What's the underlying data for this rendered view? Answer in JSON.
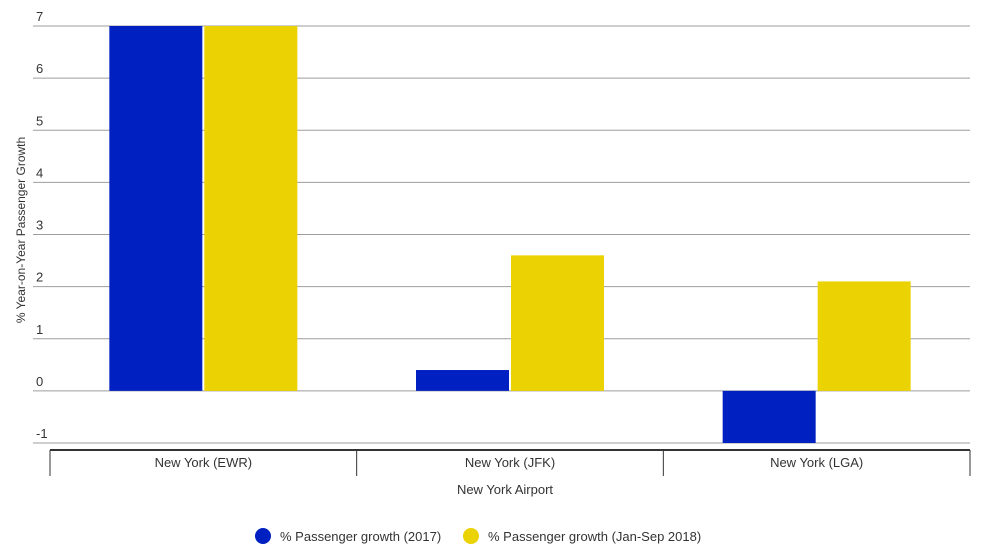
{
  "chart_data": {
    "type": "bar",
    "title": "",
    "xlabel": "New York Airport",
    "ylabel": "% Year-on-Year Passenger Growth",
    "categories": [
      "New York (EWR)",
      "New York (JFK)",
      "New York (LGA)"
    ],
    "series": [
      {
        "name": "% Passenger growth (2017)",
        "color": "#0020c2",
        "values": [
          7.0,
          0.4,
          -1.0
        ]
      },
      {
        "name": "% Passenger growth (Jan-Sep 2018)",
        "color": "#ebd203",
        "values": [
          7.0,
          2.6,
          2.1
        ]
      }
    ],
    "ylim": [
      -1,
      7
    ],
    "yticks": [
      "-1",
      "0",
      "1",
      "2",
      "3",
      "4",
      "5",
      "6",
      "7"
    ],
    "grid": true,
    "legend": "bottom"
  }
}
